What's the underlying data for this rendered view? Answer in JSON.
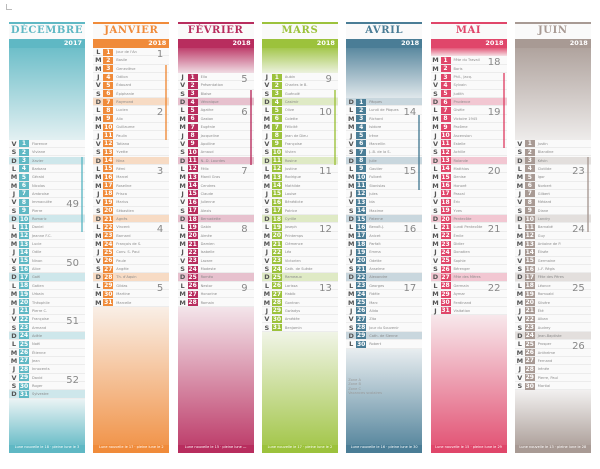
{
  "year": "2018",
  "months": [
    {
      "name": "DÉCEMBRE",
      "year": "2017",
      "accent": "#5fb8c4",
      "start": 11,
      "dow": [
        "V",
        "S",
        "D",
        "L",
        "M",
        "M",
        "J",
        "V",
        "S",
        "D",
        "L",
        "M",
        "M",
        "J",
        "V",
        "S",
        "D",
        "L",
        "M",
        "M",
        "J",
        "V",
        "S",
        "D",
        "L",
        "M",
        "M",
        "J",
        "V",
        "S",
        "D"
      ],
      "weeks": [
        {
          "n": "49",
          "at": 7
        },
        {
          "n": "50",
          "at": 14
        },
        {
          "n": "51",
          "at": 21
        },
        {
          "n": "52",
          "at": 28
        }
      ],
      "names": [
        "Florence",
        "Viviane",
        "Xavier",
        "Barbara",
        "Gérald",
        "Nicolas",
        "Ambroise",
        "Immaculée",
        "Pierre",
        "Romaric",
        "Daniel",
        "Jeanne F.C.",
        "Lucie",
        "Odile",
        "Ninon",
        "Alice",
        "Gaël",
        "Gatien",
        "Urbain",
        "Théophile",
        "Pierre C.",
        "Françoise",
        "Armand",
        "Adèle",
        "Noël",
        "Étienne",
        "Jean",
        "Innocents",
        "David",
        "Roger",
        "Sylvestre"
      ],
      "footer": "Lune nouvelle le 18 · pleine lune le 3"
    },
    {
      "name": "JANVIER",
      "year": "2018",
      "accent": "#f08b3a",
      "start": 0,
      "dow": [
        "L",
        "M",
        "M",
        "J",
        "V",
        "S",
        "D",
        "L",
        "M",
        "M",
        "J",
        "V",
        "S",
        "D",
        "L",
        "M",
        "M",
        "J",
        "V",
        "S",
        "D",
        "L",
        "M",
        "M",
        "J",
        "V",
        "S",
        "D",
        "L",
        "M",
        "M"
      ],
      "weeks": [
        {
          "n": "1",
          "at": 0
        },
        {
          "n": "2",
          "at": 7
        },
        {
          "n": "3",
          "at": 14
        },
        {
          "n": "4",
          "at": 21
        },
        {
          "n": "5",
          "at": 28
        }
      ],
      "names": [
        "Jour de l'An",
        "Basile",
        "Geneviève",
        "Odilon",
        "Édouard",
        "Épiphanie",
        "Raymond",
        "Lucien",
        "Alix",
        "Guillaume",
        "Paulin",
        "Tatiana",
        "Yvette",
        "Nina",
        "Rémi",
        "Marcel",
        "Roseline",
        "Prisca",
        "Marius",
        "Sébastien",
        "Agnès",
        "Vincent",
        "Barnard",
        "François de S.",
        "Conv. S. Paul",
        "Paule",
        "Angèle",
        "Th. d'Aquin",
        "Gildas",
        "Martine",
        "Marcelle"
      ],
      "footer": "Lune nouvelle le 17 · pleine lune le 2"
    },
    {
      "name": "FÉVRIER",
      "year": "2018",
      "accent": "#b82d5e",
      "start": 3,
      "dow": [
        "J",
        "V",
        "S",
        "D",
        "L",
        "M",
        "M",
        "J",
        "V",
        "S",
        "D",
        "L",
        "M",
        "M",
        "J",
        "V",
        "S",
        "D",
        "L",
        "M",
        "M",
        "J",
        "V",
        "S",
        "D",
        "L",
        "M",
        "M"
      ],
      "weeks": [
        {
          "n": "5",
          "at": 0
        },
        {
          "n": "6",
          "at": 4
        },
        {
          "n": "7",
          "at": 11
        },
        {
          "n": "8",
          "at": 18
        },
        {
          "n": "9",
          "at": 25
        }
      ],
      "names": [
        "Ella",
        "Présentation",
        "Blaise",
        "Véronique",
        "Agathe",
        "Gaston",
        "Eugénie",
        "Jacqueline",
        "Apolline",
        "Arnaud",
        "N.-D. Lourdes",
        "Félix",
        "Mardi Gras",
        "Cendres",
        "Claude",
        "Julienne",
        "Alexis",
        "Bernadette",
        "Gabin",
        "Aimée",
        "Damien",
        "Isabelle",
        "Lazare",
        "Modeste",
        "Roméo",
        "Nestor",
        "Honorine",
        "Romain"
      ],
      "footer": "Lune nouvelle le 15 · pleine lune —"
    },
    {
      "name": "MARS",
      "year": "2018",
      "accent": "#9cc23c",
      "start": 3,
      "dow": [
        "J",
        "V",
        "S",
        "D",
        "L",
        "M",
        "M",
        "J",
        "V",
        "S",
        "D",
        "L",
        "M",
        "M",
        "J",
        "V",
        "S",
        "D",
        "L",
        "M",
        "M",
        "J",
        "V",
        "S",
        "D",
        "L",
        "M",
        "M",
        "J",
        "V",
        "S"
      ],
      "weeks": [
        {
          "n": "9",
          "at": 0
        },
        {
          "n": "10",
          "at": 4
        },
        {
          "n": "11",
          "at": 11
        },
        {
          "n": "12",
          "at": 18
        },
        {
          "n": "13",
          "at": 25
        }
      ],
      "names": [
        "Aubin",
        "Charles le B.",
        "Guénolé",
        "Casimir",
        "Olive",
        "Colette",
        "Félicité",
        "Jean de Dieu",
        "Françoise",
        "Vivien",
        "Rosine",
        "Justine",
        "Rodrigue",
        "Mathilde",
        "Louise",
        "Bénédicte",
        "Patrice",
        "Cyrille",
        "Joseph",
        "Printemps",
        "Clémence",
        "Léa",
        "Victorien",
        "Cath. de Suède",
        "Rameaux",
        "Larissa",
        "Habib",
        "Gontran",
        "Gwladys",
        "Amédée",
        "Benjamin"
      ],
      "footer": "Lune nouvelle le 17 · pleine lune le 2"
    },
    {
      "name": "AVRIL",
      "year": "2018",
      "accent": "#4a7d96",
      "start": 6,
      "dow": [
        "D",
        "L",
        "M",
        "M",
        "J",
        "V",
        "S",
        "D",
        "L",
        "M",
        "M",
        "J",
        "V",
        "S",
        "D",
        "L",
        "M",
        "M",
        "J",
        "V",
        "S",
        "D",
        "L",
        "M",
        "M",
        "J",
        "V",
        "S",
        "D",
        "L"
      ],
      "weeks": [
        {
          "n": "14",
          "at": 1
        },
        {
          "n": "15",
          "at": 8
        },
        {
          "n": "16",
          "at": 15
        },
        {
          "n": "17",
          "at": 22
        }
      ],
      "names": [
        "Pâques",
        "Lundi de Pâques",
        "Richard",
        "Isidore",
        "Irène",
        "Marcellin",
        "J.-B. de la S.",
        "Julie",
        "Gautier",
        "Fulbert",
        "Stanislas",
        "Jules",
        "Ida",
        "Maxime",
        "Paterne",
        "Benoît-J.",
        "Anicet",
        "Parfait",
        "Emma",
        "Odette",
        "Anselme",
        "Alexandre",
        "Georges",
        "Fidèle",
        "Marc",
        "Alida",
        "Zita",
        "Jour du Souvenir",
        "Cath. de Sienne",
        "Robert"
      ],
      "footer": "Lune nouvelle le 16 · pleine lune le 30"
    },
    {
      "name": "MAI",
      "year": "2018",
      "accent": "#e0466a",
      "start": 1,
      "dow": [
        "M",
        "M",
        "J",
        "V",
        "S",
        "D",
        "L",
        "M",
        "M",
        "J",
        "V",
        "S",
        "D",
        "L",
        "M",
        "M",
        "J",
        "V",
        "S",
        "D",
        "L",
        "M",
        "M",
        "J",
        "V",
        "S",
        "D",
        "L",
        "M",
        "M",
        "J"
      ],
      "weeks": [
        {
          "n": "18",
          "at": 0
        },
        {
          "n": "19",
          "at": 6
        },
        {
          "n": "20",
          "at": 13
        },
        {
          "n": "21",
          "at": 20
        },
        {
          "n": "22",
          "at": 27
        }
      ],
      "names": [
        "Fête du Travail",
        "Boris",
        "Phil., Jacq.",
        "Sylvain",
        "Judith",
        "Prudence",
        "Gisèle",
        "Victoire 1945",
        "Pacôme",
        "Ascension",
        "Estelle",
        "Achille",
        "Rolande",
        "Matthias",
        "Denise",
        "Honoré",
        "Pascal",
        "Éric",
        "Yves",
        "Pentecôte",
        "Lundi Pentecôte",
        "Émile",
        "Didier",
        "Donatien",
        "Sophie",
        "Bérenger",
        "Fête des Mères",
        "Germain",
        "Aymar",
        "Ferdinand",
        "Visitation"
      ],
      "footer": "Lune nouvelle le 15 · pleine lune le 29"
    },
    {
      "name": "JUIN",
      "year": "2018",
      "accent": "#a89a94",
      "start": 11,
      "dow": [
        "V",
        "S",
        "D",
        "L",
        "M",
        "M",
        "J",
        "V",
        "S",
        "D",
        "L",
        "M",
        "M",
        "J",
        "V",
        "S",
        "D",
        "L",
        "M",
        "M",
        "J",
        "V",
        "S",
        "D",
        "L",
        "M",
        "M",
        "J",
        "V",
        "S"
      ],
      "weeks": [
        {
          "n": "23",
          "at": 3
        },
        {
          "n": "24",
          "at": 10
        },
        {
          "n": "25",
          "at": 17
        },
        {
          "n": "26",
          "at": 24
        }
      ],
      "names": [
        "Justin",
        "Blandine",
        "Kévin",
        "Clotilde",
        "Igor",
        "Norbert",
        "Gilbert",
        "Médard",
        "Diane",
        "Landry",
        "Barnabé",
        "Guy",
        "Antoine de P.",
        "Élisée",
        "Germaine",
        "J.-F. Régis",
        "Fête des Pères",
        "Léonce",
        "Romuald",
        "Silvère",
        "Été",
        "Alban",
        "Audrey",
        "Jean-Baptiste",
        "Prosper",
        "Anthelme",
        "Fernand",
        "Irénée",
        "Pierre, Paul",
        "Martial"
      ],
      "footer": "Lune nouvelle le 13 · pleine lune le 28"
    }
  ],
  "legend": {
    "zone_a": "Zone A",
    "zone_b": "Zone B",
    "zone_c": "Zone C",
    "note": "Vacances scolaires"
  }
}
